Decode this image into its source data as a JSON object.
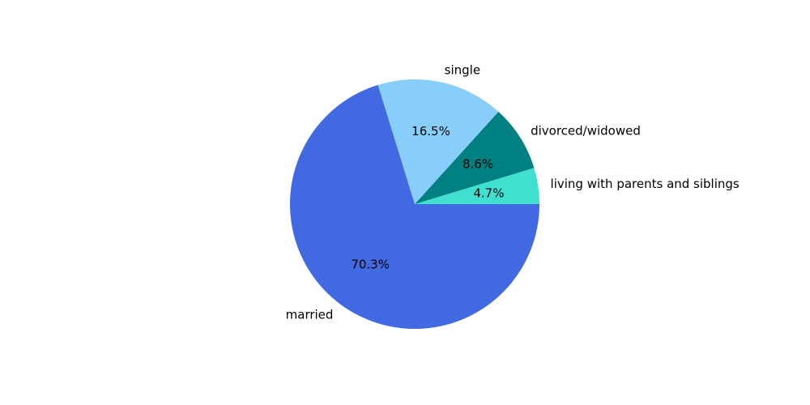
{
  "chart_data": {
    "type": "pie",
    "title": "",
    "start_angle_deg": 0,
    "direction": "counterclockwise",
    "slices": [
      {
        "label": "living with parents and siblings",
        "value": 4.7,
        "pct_label": "4.7%",
        "color": "#40E0D0"
      },
      {
        "label": "divorced/widowed",
        "value": 8.6,
        "pct_label": "8.6%",
        "color": "#008080"
      },
      {
        "label": "single",
        "value": 16.5,
        "pct_label": "16.5%",
        "color": "#87CEFA"
      },
      {
        "label": "married",
        "value": 70.3,
        "pct_label": "70.3%",
        "color": "#4169E1"
      }
    ]
  }
}
